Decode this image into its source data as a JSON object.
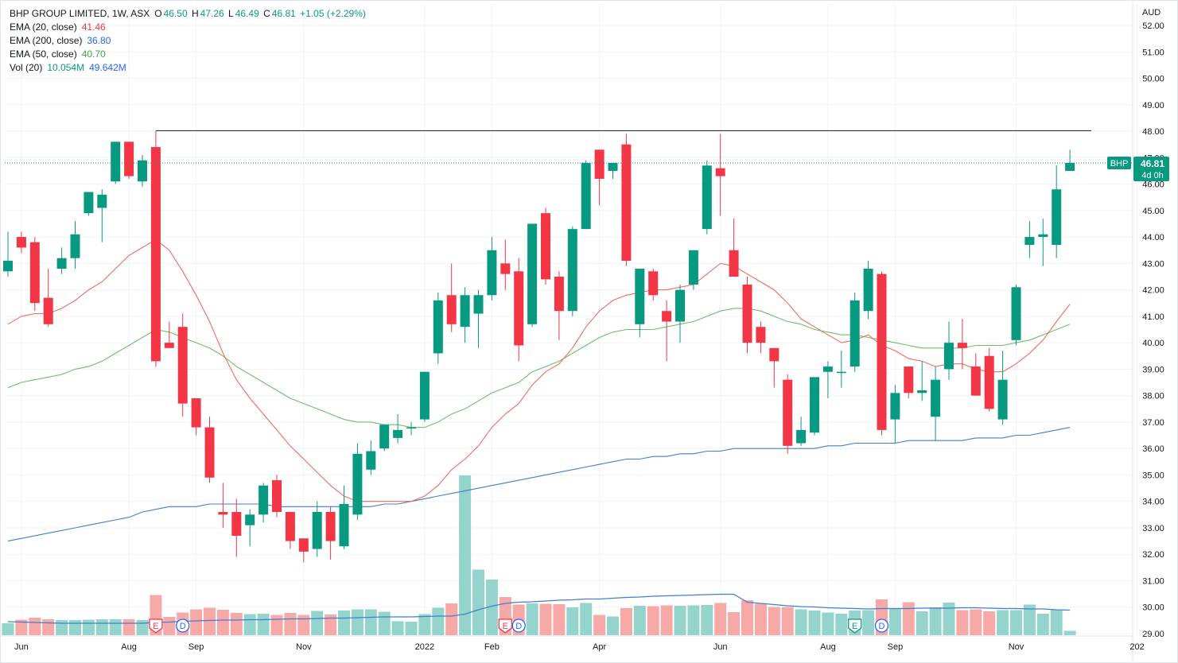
{
  "header": {
    "symbol": "BHP GROUP LIMITED, 1W, ASX",
    "open_label": "O",
    "open": "46.50",
    "high_label": "H",
    "high": "47.26",
    "low_label": "L",
    "low": "46.49",
    "close_label": "C",
    "close": "46.81",
    "change": "+1.05 (+2.29%)"
  },
  "indicators": {
    "ema20": {
      "label": "EMA (20, close)",
      "value": "41.46"
    },
    "ema200": {
      "label": "EMA (200, close)",
      "value": "36.80"
    },
    "ema50": {
      "label": "EMA (50, close)",
      "value": "40.70"
    },
    "vol": {
      "label": "Vol (20)",
      "value1": "10.054M",
      "value2": "49.642M"
    }
  },
  "colors": {
    "up": "#26a69a",
    "down": "#ef5350",
    "up_body": "#089981",
    "down_body": "#f23645",
    "ema20": "#f26b5b",
    "ema50": "#6cbf6b",
    "ema200": "#3f7fd0",
    "vol_up": "#94d4cc",
    "vol_down": "#f7a9a7",
    "vol_ma": "#3f7fd0",
    "price_label": "#089981",
    "grid": "#f0f3fa",
    "text": "#131722"
  },
  "axis": {
    "currency": "AUD",
    "y_ticks": [
      "52.00",
      "51.00",
      "50.00",
      "49.00",
      "48.00",
      "47.00",
      "46.00",
      "45.00",
      "44.00",
      "43.00",
      "42.00",
      "41.00",
      "40.00",
      "39.00",
      "38.00",
      "37.00",
      "36.00",
      "35.00",
      "34.00",
      "33.00",
      "32.00",
      "31.00",
      "30.00",
      "29.00"
    ],
    "x_ticks": [
      "Jun",
      "Aug",
      "Sep",
      "Nov",
      "2022",
      "Feb",
      "Apr",
      "Jun",
      "Aug",
      "Sep",
      "Nov",
      "202"
    ]
  },
  "price_label": {
    "symbol": "BHP",
    "price": "46.81",
    "countdown": "4d 0h"
  },
  "events": [
    {
      "type": "E",
      "label": "E"
    },
    {
      "type": "D",
      "label": "D"
    },
    {
      "type": "E",
      "label": "E"
    },
    {
      "type": "D",
      "label": "D"
    },
    {
      "type": "E",
      "label": "E"
    },
    {
      "type": "D",
      "label": "D"
    }
  ],
  "chart_data": {
    "type": "candlestick",
    "title": "BHP GROUP LIMITED, 1W, ASX",
    "ylim": [
      28.8,
      52.3
    ],
    "resistance_level": 48.02,
    "candles": [
      {
        "o": 42.7,
        "h": 44.2,
        "l": 42.5,
        "c": 43.1
      },
      {
        "o": 44.0,
        "h": 44.2,
        "l": 43.4,
        "c": 43.6
      },
      {
        "o": 43.8,
        "h": 44.0,
        "l": 41.2,
        "c": 41.5
      },
      {
        "o": 41.7,
        "h": 42.8,
        "l": 40.6,
        "c": 40.7
      },
      {
        "o": 42.8,
        "h": 43.6,
        "l": 42.6,
        "c": 43.2
      },
      {
        "o": 43.2,
        "h": 44.6,
        "l": 42.8,
        "c": 44.1
      },
      {
        "o": 44.9,
        "h": 45.7,
        "l": 44.8,
        "c": 45.7
      },
      {
        "o": 45.1,
        "h": 45.8,
        "l": 43.8,
        "c": 45.6
      },
      {
        "o": 46.1,
        "h": 47.6,
        "l": 46.0,
        "c": 47.6
      },
      {
        "o": 47.6,
        "h": 47.6,
        "l": 46.2,
        "c": 46.3
      },
      {
        "o": 46.1,
        "h": 47.1,
        "l": 45.9,
        "c": 46.9
      },
      {
        "o": 47.4,
        "h": 48.0,
        "l": 39.1,
        "c": 39.3
      },
      {
        "o": 40.0,
        "h": 40.8,
        "l": 39.8,
        "c": 39.8
      },
      {
        "o": 40.6,
        "h": 41.1,
        "l": 37.2,
        "c": 37.7
      },
      {
        "o": 37.9,
        "h": 37.9,
        "l": 36.5,
        "c": 36.8
      },
      {
        "o": 36.8,
        "h": 37.2,
        "l": 34.7,
        "c": 34.9
      },
      {
        "o": 33.6,
        "h": 34.7,
        "l": 33.0,
        "c": 33.5
      },
      {
        "o": 33.6,
        "h": 34.1,
        "l": 31.9,
        "c": 32.7
      },
      {
        "o": 33.1,
        "h": 33.7,
        "l": 32.3,
        "c": 33.5
      },
      {
        "o": 33.5,
        "h": 34.7,
        "l": 33.2,
        "c": 34.6
      },
      {
        "o": 34.8,
        "h": 35.0,
        "l": 33.4,
        "c": 33.6
      },
      {
        "o": 33.6,
        "h": 33.6,
        "l": 32.2,
        "c": 32.5
      },
      {
        "o": 32.6,
        "h": 32.6,
        "l": 31.7,
        "c": 32.1
      },
      {
        "o": 32.2,
        "h": 34.0,
        "l": 31.9,
        "c": 33.6
      },
      {
        "o": 33.6,
        "h": 33.8,
        "l": 31.8,
        "c": 32.5
      },
      {
        "o": 32.3,
        "h": 34.6,
        "l": 32.2,
        "c": 33.9
      },
      {
        "o": 33.5,
        "h": 36.2,
        "l": 33.3,
        "c": 35.8
      },
      {
        "o": 35.2,
        "h": 36.3,
        "l": 35.0,
        "c": 35.9
      },
      {
        "o": 36.0,
        "h": 36.9,
        "l": 35.9,
        "c": 36.9
      },
      {
        "o": 36.4,
        "h": 37.3,
        "l": 36.2,
        "c": 36.7
      },
      {
        "o": 36.8,
        "h": 37.0,
        "l": 36.5,
        "c": 36.8
      },
      {
        "o": 37.1,
        "h": 38.9,
        "l": 37.0,
        "c": 38.9
      },
      {
        "o": 39.6,
        "h": 41.9,
        "l": 39.2,
        "c": 41.6
      },
      {
        "o": 41.8,
        "h": 43.0,
        "l": 40.4,
        "c": 40.7
      },
      {
        "o": 40.6,
        "h": 42.1,
        "l": 40.0,
        "c": 41.8
      },
      {
        "o": 41.1,
        "h": 42.0,
        "l": 39.8,
        "c": 41.8
      },
      {
        "o": 41.8,
        "h": 44.0,
        "l": 41.6,
        "c": 43.5
      },
      {
        "o": 43.0,
        "h": 43.9,
        "l": 42.0,
        "c": 42.6
      },
      {
        "o": 42.7,
        "h": 43.2,
        "l": 39.3,
        "c": 39.9
      },
      {
        "o": 40.7,
        "h": 44.5,
        "l": 40.6,
        "c": 44.5
      },
      {
        "o": 44.9,
        "h": 45.1,
        "l": 42.2,
        "c": 42.4
      },
      {
        "o": 42.5,
        "h": 42.7,
        "l": 40.1,
        "c": 41.2
      },
      {
        "o": 41.2,
        "h": 44.4,
        "l": 41.0,
        "c": 44.3
      },
      {
        "o": 44.3,
        "h": 46.9,
        "l": 44.3,
        "c": 46.8
      },
      {
        "o": 47.3,
        "h": 47.3,
        "l": 45.2,
        "c": 46.2
      },
      {
        "o": 46.5,
        "h": 46.8,
        "l": 46.2,
        "c": 46.8
      },
      {
        "o": 47.5,
        "h": 47.9,
        "l": 42.9,
        "c": 43.1
      },
      {
        "o": 40.7,
        "h": 42.8,
        "l": 40.2,
        "c": 42.8
      },
      {
        "o": 42.7,
        "h": 42.8,
        "l": 41.6,
        "c": 41.8
      },
      {
        "o": 41.2,
        "h": 41.6,
        "l": 39.3,
        "c": 40.8
      },
      {
        "o": 40.8,
        "h": 42.2,
        "l": 40.0,
        "c": 42.0
      },
      {
        "o": 42.2,
        "h": 43.5,
        "l": 42.0,
        "c": 43.5
      },
      {
        "o": 44.3,
        "h": 46.9,
        "l": 44.1,
        "c": 46.7
      },
      {
        "o": 46.6,
        "h": 47.9,
        "l": 44.8,
        "c": 46.3
      },
      {
        "o": 43.5,
        "h": 44.7,
        "l": 42.5,
        "c": 42.5
      },
      {
        "o": 42.2,
        "h": 42.5,
        "l": 39.6,
        "c": 40.0
      },
      {
        "o": 40.6,
        "h": 40.8,
        "l": 39.6,
        "c": 40.0
      },
      {
        "o": 39.8,
        "h": 39.8,
        "l": 38.3,
        "c": 39.3
      },
      {
        "o": 38.6,
        "h": 38.8,
        "l": 35.8,
        "c": 36.1
      },
      {
        "o": 36.2,
        "h": 37.2,
        "l": 36.1,
        "c": 36.7
      },
      {
        "o": 36.6,
        "h": 38.7,
        "l": 36.5,
        "c": 38.7
      },
      {
        "o": 38.9,
        "h": 39.3,
        "l": 37.9,
        "c": 39.1
      },
      {
        "o": 38.9,
        "h": 39.7,
        "l": 38.3,
        "c": 38.9
      },
      {
        "o": 39.1,
        "h": 41.9,
        "l": 38.9,
        "c": 41.6
      },
      {
        "o": 41.2,
        "h": 43.1,
        "l": 40.9,
        "c": 42.8
      },
      {
        "o": 42.6,
        "h": 42.7,
        "l": 36.5,
        "c": 36.7
      },
      {
        "o": 37.1,
        "h": 38.4,
        "l": 36.2,
        "c": 38.1
      },
      {
        "o": 39.1,
        "h": 39.1,
        "l": 37.9,
        "c": 38.1
      },
      {
        "o": 38.1,
        "h": 39.3,
        "l": 37.8,
        "c": 38.2
      },
      {
        "o": 37.2,
        "h": 39.1,
        "l": 36.3,
        "c": 38.6
      },
      {
        "o": 39.0,
        "h": 40.8,
        "l": 38.6,
        "c": 40.0
      },
      {
        "o": 40.0,
        "h": 40.9,
        "l": 39.0,
        "c": 39.8
      },
      {
        "o": 39.1,
        "h": 39.6,
        "l": 38.0,
        "c": 38.0
      },
      {
        "o": 39.5,
        "h": 39.8,
        "l": 37.4,
        "c": 37.5
      },
      {
        "o": 37.1,
        "h": 39.7,
        "l": 36.9,
        "c": 38.6
      },
      {
        "o": 40.1,
        "h": 42.2,
        "l": 39.9,
        "c": 42.1
      },
      {
        "o": 43.7,
        "h": 44.6,
        "l": 43.2,
        "c": 44.0
      },
      {
        "o": 44.0,
        "h": 44.7,
        "l": 42.9,
        "c": 44.1
      },
      {
        "o": 43.7,
        "h": 46.7,
        "l": 43.2,
        "c": 45.8
      },
      {
        "o": 46.5,
        "h": 47.3,
        "l": 46.5,
        "c": 46.8
      }
    ],
    "volume": [
      3.0,
      3.9,
      4.4,
      4.0,
      3.8,
      3.8,
      3.9,
      4.0,
      4.0,
      4.0,
      3.8,
      10.1,
      4.6,
      5.7,
      6.5,
      6.9,
      6.4,
      5.6,
      5.3,
      5.4,
      5.1,
      5.6,
      5.1,
      6.1,
      5.2,
      6.2,
      6.5,
      6.5,
      5.9,
      3.5,
      3.4,
      5.3,
      6.9,
      8.0,
      40.2,
      16.5,
      14.0,
      9.6,
      7.7,
      8.0,
      7.9,
      7.8,
      7.0,
      8.1,
      5.1,
      4.7,
      6.8,
      7.4,
      7.3,
      7.5,
      7.4,
      7.5,
      7.6,
      8.1,
      5.8,
      8.8,
      7.9,
      7.1,
      7.1,
      6.5,
      6.2,
      5.7,
      5.4,
      6.2,
      6.3,
      9.0,
      6.6,
      8.3,
      6.0,
      7.0,
      8.2,
      6.3,
      6.5,
      6.0,
      6.3,
      6.3,
      7.7,
      5.4,
      6.4,
      1.1
    ],
    "vol_ma": [
      3.4,
      3.3,
      3.2,
      3.1,
      3.0,
      3.0,
      3.0,
      3.0,
      3.0,
      3.0,
      3.0,
      3.2,
      3.3,
      3.5,
      3.6,
      3.7,
      3.8,
      3.8,
      3.9,
      3.9,
      4.0,
      4.1,
      4.1,
      4.2,
      4.3,
      4.3,
      4.4,
      4.5,
      4.6,
      4.6,
      4.6,
      4.7,
      4.8,
      4.8,
      5.3,
      6.4,
      7.3,
      8.0,
      8.3,
      8.4,
      8.6,
      8.8,
      8.9,
      9.1,
      9.1,
      9.3,
      9.5,
      9.6,
      9.8,
      9.9,
      10.0,
      10.1,
      10.2,
      10.3,
      10.3,
      8.3,
      8.0,
      7.7,
      7.4,
      7.2,
      7.1,
      6.9,
      6.8,
      6.7,
      6.6,
      6.7,
      6.7,
      6.7,
      6.8,
      6.8,
      6.8,
      6.9,
      6.9,
      6.8,
      6.7,
      6.7,
      6.6,
      6.6,
      6.4,
      6.3
    ],
    "ema20": [
      40.7,
      41.0,
      41.1,
      41.1,
      41.3,
      41.6,
      42.0,
      42.3,
      42.8,
      43.3,
      43.6,
      43.9,
      43.5,
      42.7,
      41.8,
      40.8,
      39.6,
      38.6,
      37.9,
      37.3,
      36.7,
      36.1,
      35.6,
      35.1,
      34.6,
      34.2,
      34.0,
      34.0,
      34.0,
      34.0,
      34.0,
      34.2,
      34.6,
      35.2,
      35.6,
      36.1,
      36.8,
      37.3,
      37.7,
      38.4,
      38.9,
      39.2,
      39.8,
      40.6,
      41.2,
      41.6,
      41.8,
      41.9,
      42.0,
      42.0,
      42.1,
      42.2,
      42.6,
      43.0,
      42.9,
      42.6,
      42.3,
      42.0,
      41.5,
      40.9,
      40.6,
      40.3,
      40.0,
      40.1,
      40.3,
      39.9,
      39.7,
      39.4,
      39.3,
      39.1,
      39.2,
      39.2,
      39.0,
      38.9,
      38.9,
      39.2,
      39.6,
      40.1,
      40.8,
      41.46
    ],
    "ema50": [
      38.3,
      38.5,
      38.6,
      38.7,
      38.8,
      39.0,
      39.1,
      39.3,
      39.6,
      39.9,
      40.2,
      40.5,
      40.4,
      40.2,
      40.0,
      39.8,
      39.5,
      39.1,
      38.8,
      38.5,
      38.2,
      37.9,
      37.7,
      37.5,
      37.3,
      37.1,
      37.0,
      37.0,
      36.9,
      36.9,
      36.8,
      36.8,
      37.0,
      37.3,
      37.5,
      37.8,
      38.1,
      38.3,
      38.5,
      38.9,
      39.1,
      39.3,
      39.6,
      39.9,
      40.2,
      40.4,
      40.5,
      40.5,
      40.5,
      40.6,
      40.7,
      40.8,
      41.0,
      41.2,
      41.3,
      41.3,
      41.2,
      41.0,
      40.8,
      40.7,
      40.5,
      40.4,
      40.3,
      40.3,
      40.2,
      40.1,
      40.0,
      39.9,
      39.8,
      39.8,
      39.8,
      39.8,
      39.9,
      39.9,
      39.9,
      40.0,
      40.1,
      40.3,
      40.5,
      40.7
    ],
    "ema200": [
      32.5,
      32.6,
      32.7,
      32.8,
      32.9,
      33.0,
      33.1,
      33.2,
      33.3,
      33.4,
      33.6,
      33.7,
      33.8,
      33.8,
      33.8,
      33.9,
      33.9,
      33.9,
      33.9,
      33.9,
      33.8,
      33.8,
      33.8,
      33.8,
      33.8,
      33.8,
      33.8,
      33.8,
      33.9,
      33.9,
      34.0,
      34.1,
      34.2,
      34.3,
      34.4,
      34.5,
      34.6,
      34.7,
      34.8,
      34.9,
      35.0,
      35.1,
      35.2,
      35.3,
      35.4,
      35.5,
      35.6,
      35.6,
      35.7,
      35.7,
      35.8,
      35.8,
      35.9,
      35.9,
      36.0,
      36.0,
      36.0,
      36.0,
      36.0,
      36.0,
      36.0,
      36.1,
      36.1,
      36.2,
      36.2,
      36.2,
      36.2,
      36.3,
      36.3,
      36.3,
      36.3,
      36.3,
      36.4,
      36.4,
      36.4,
      36.5,
      36.5,
      36.6,
      36.7,
      36.8
    ]
  }
}
